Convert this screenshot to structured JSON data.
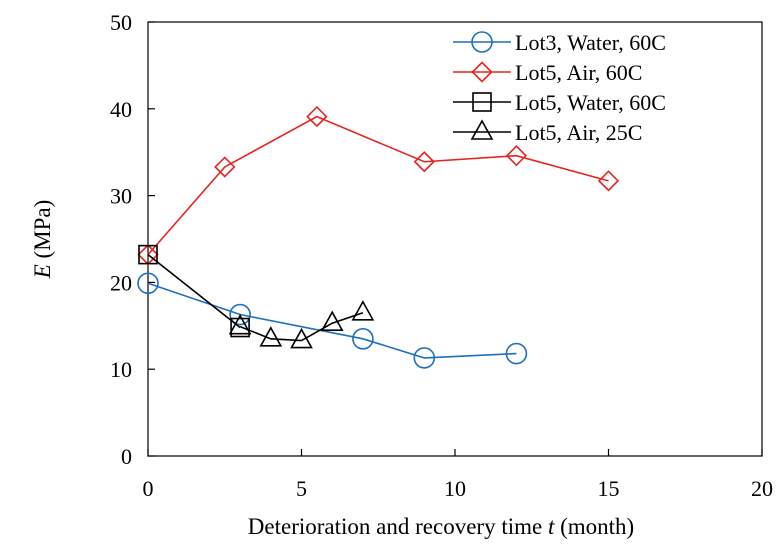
{
  "chart_data": {
    "type": "line",
    "title": "",
    "xlabel_prefix": "Deterioration and recovery time ",
    "xlabel_var": "t",
    "xlabel_suffix": " (month)",
    "ylabel_var": "E",
    "ylabel_suffix": " (MPa)",
    "xlim": [
      0,
      20
    ],
    "ylim": [
      0,
      50
    ],
    "xticks": [
      "0",
      "5",
      "10",
      "15",
      "20"
    ],
    "yticks": [
      "0",
      "10",
      "20",
      "30",
      "40",
      "50"
    ],
    "grid": false,
    "legend_position": "top-right",
    "series": [
      {
        "name": "Lot3, Water, 60C",
        "color": "#1f6fbf",
        "marker": "circle",
        "x": [
          0,
          3,
          7,
          9,
          12
        ],
        "y": [
          19.9,
          16.3,
          13.5,
          11.3,
          11.8
        ]
      },
      {
        "name": "Lot5, Air, 60C",
        "color": "#e8231f",
        "marker": "diamond",
        "x": [
          0,
          2.5,
          5.5,
          9,
          12,
          15
        ],
        "y": [
          23.2,
          33.3,
          39.1,
          33.9,
          34.6,
          31.7
        ]
      },
      {
        "name": "Lot5, Water, 60C",
        "color": "#000000",
        "marker": "square",
        "x": [
          0,
          3
        ],
        "y": [
          23.2,
          14.8
        ]
      },
      {
        "name": "Lot5, Air, 25C",
        "color": "#000000",
        "marker": "triangle",
        "x": [
          3,
          4,
          5,
          6,
          7
        ],
        "y": [
          14.9,
          13.5,
          13.3,
          15.3,
          16.5
        ]
      }
    ]
  }
}
